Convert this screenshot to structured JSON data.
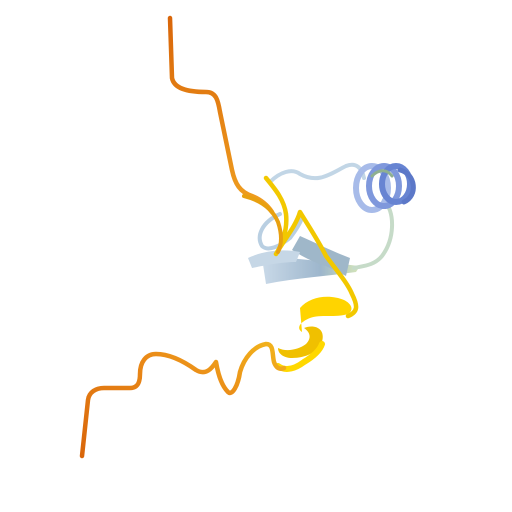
{
  "scene": {
    "background": "#ffffff",
    "subject": "protein-ribbon-structure",
    "coloring": "plddt-confidence"
  },
  "palette": {
    "very_low": "#e07b10",
    "low": "#f2c200",
    "low_light": "#ffe040",
    "confident": "#b8cfe0",
    "confident_dark": "#7fa0c0",
    "high": "#7b9be6",
    "high_dark": "#5a78c8"
  }
}
